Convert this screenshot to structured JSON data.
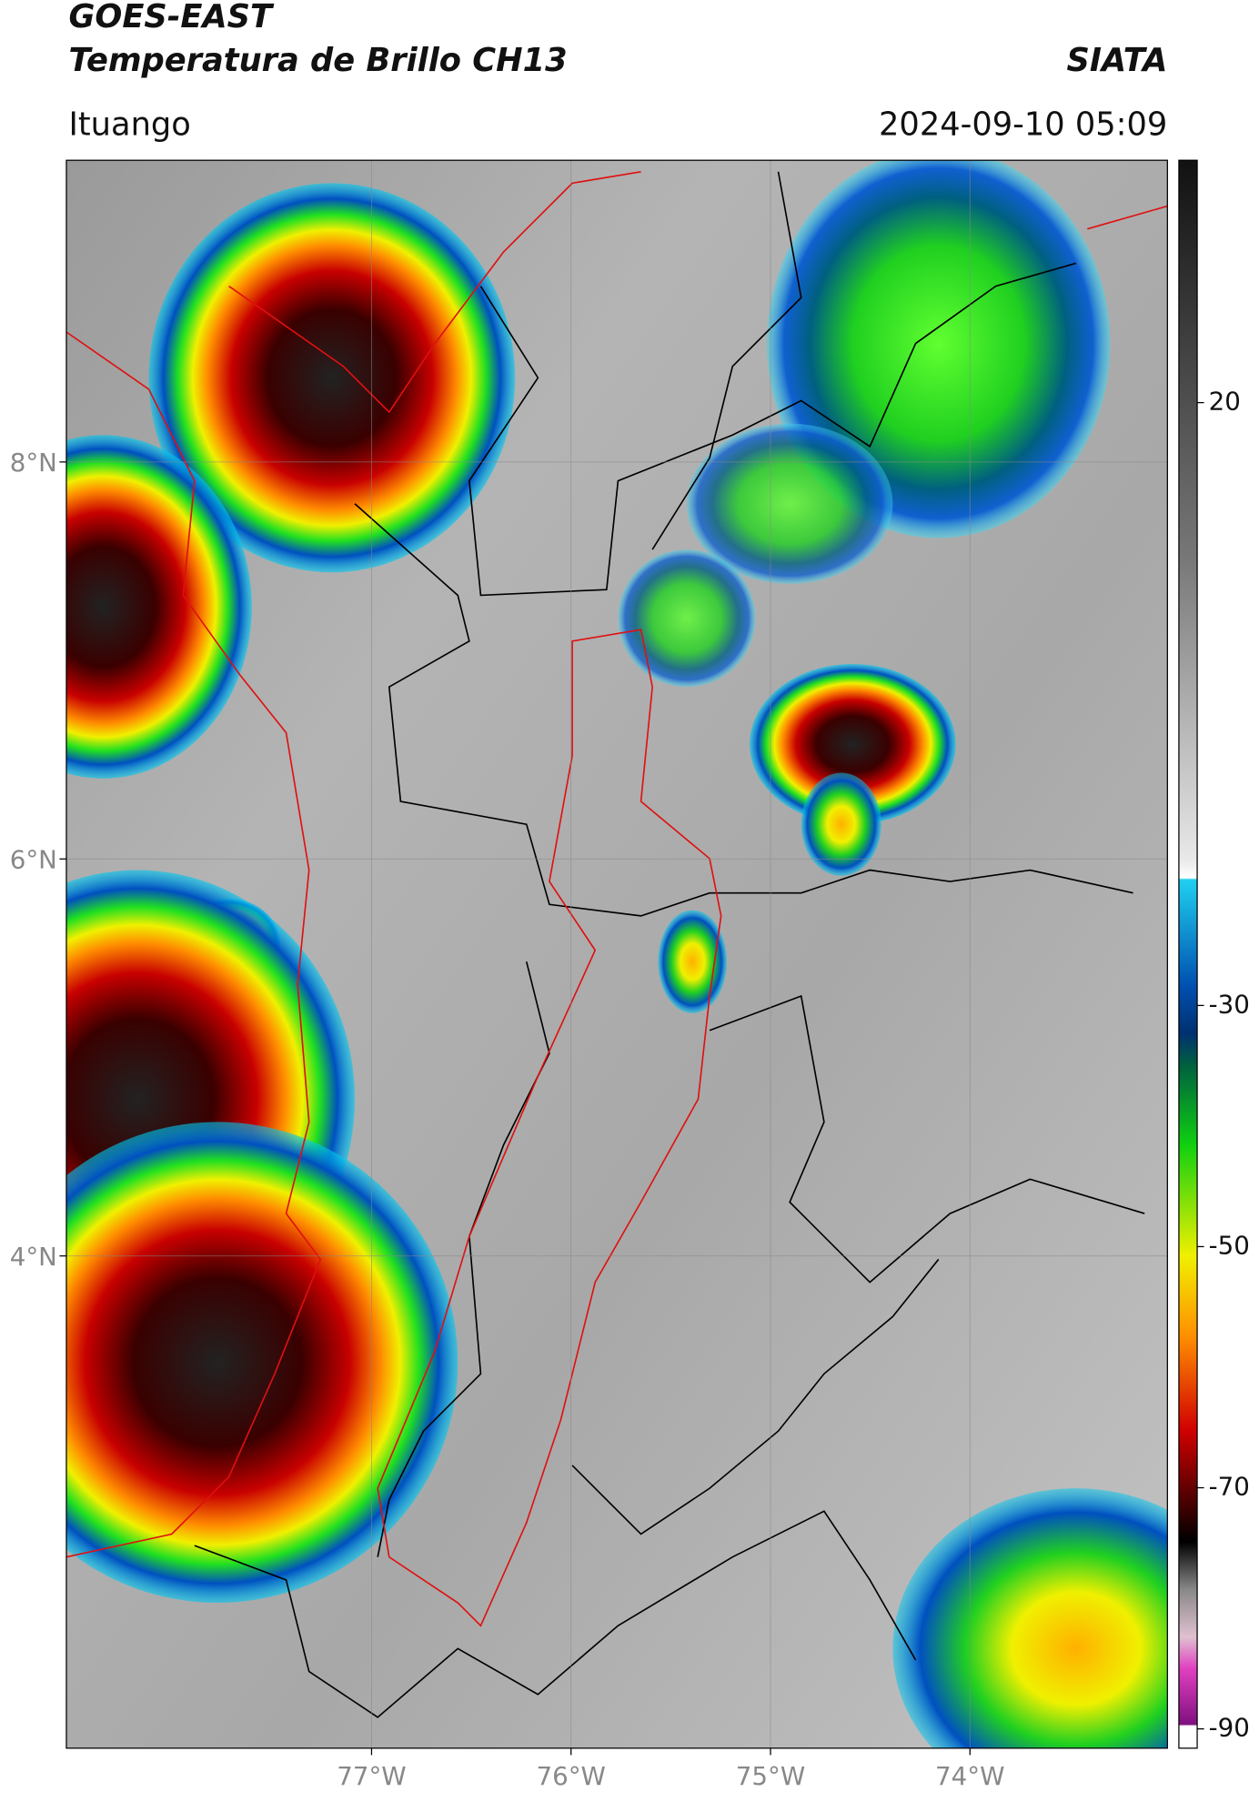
{
  "header": {
    "satellite": "GOES-EAST",
    "product": "Temperatura de Brillo CH13",
    "source": "SIATA",
    "location": "Ituango",
    "datetime": "2024-09-10 05:09"
  },
  "map": {
    "lon_range": [
      -78.53,
      -73.01
    ],
    "lat_range": [
      1.52,
      9.52
    ],
    "lon_ticks": [
      {
        "value": -77,
        "label": "77°W"
      },
      {
        "value": -76,
        "label": "76°W"
      },
      {
        "value": -75,
        "label": "75°W"
      },
      {
        "value": -74,
        "label": "74°W"
      }
    ],
    "lat_ticks": [
      {
        "value": 8,
        "label": "8°N"
      },
      {
        "value": 6,
        "label": "6°N"
      },
      {
        "value": 4,
        "label": "4°N"
      }
    ]
  },
  "colorbar": {
    "range": [
      -91.6,
      40.1
    ],
    "ticks": [
      20,
      -30,
      -50,
      -70,
      -90
    ]
  }
}
